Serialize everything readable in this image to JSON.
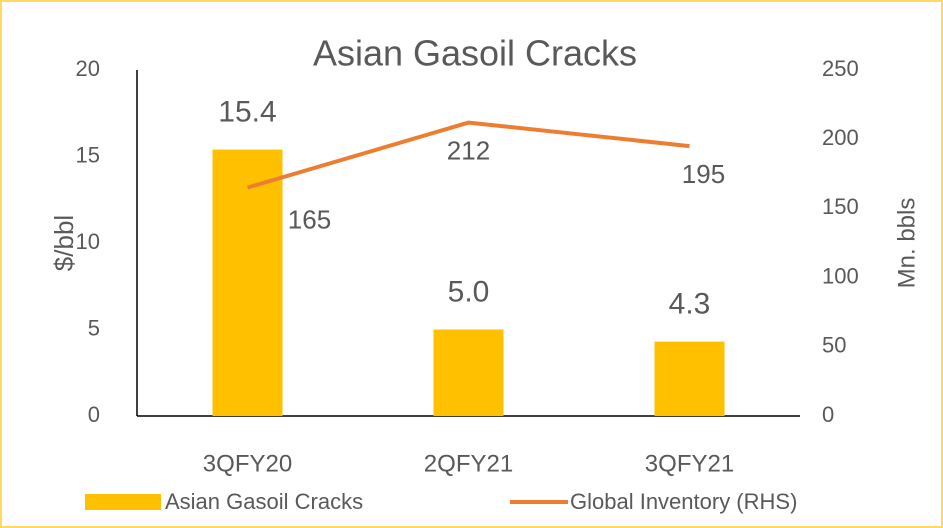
{
  "chart_data": {
    "type": "bar",
    "title": "Asian Gasoil Cracks",
    "categories": [
      "3QFY20",
      "2QFY21",
      "3QFY21"
    ],
    "series": [
      {
        "name": "Asian Gasoil Cracks",
        "type": "bar",
        "color": "#FFC000",
        "values": [
          15.4,
          5.0,
          4.3
        ],
        "value_labels": [
          "15.4",
          "5.0",
          "4.3"
        ]
      },
      {
        "name": "Global Inventory (RHS)",
        "type": "line",
        "axis": "y2",
        "color": "#ED7D31",
        "values": [
          165,
          212,
          195
        ]
      }
    ],
    "ylabel": "$/bbl",
    "y2label": "Mn. bbls",
    "ylim": [
      0,
      20
    ],
    "yticks": [
      0,
      5,
      10,
      15,
      20
    ],
    "y2lim": [
      0,
      250
    ],
    "y2ticks": [
      0,
      50,
      100,
      150,
      200,
      250
    ],
    "legend": "bottom"
  }
}
